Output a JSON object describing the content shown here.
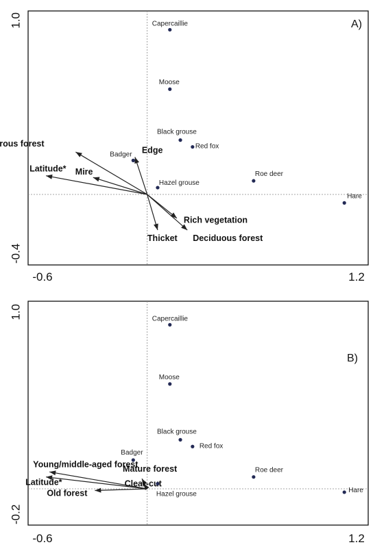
{
  "chart_data": [
    {
      "type": "scatter",
      "panel_label": "A)",
      "xlim": [
        -0.6,
        1.2
      ],
      "ylim": [
        -0.4,
        1.0
      ],
      "x_tick_labels": [
        "-0.6",
        "1.2"
      ],
      "y_tick_labels": [
        "1.0",
        "-0.4"
      ],
      "points": [
        {
          "name": "Capercaillie",
          "x": 0.13,
          "y": 0.97
        },
        {
          "name": "Moose",
          "x": 0.13,
          "y": 0.62
        },
        {
          "name": "Black grouse",
          "x": 0.19,
          "y": 0.32
        },
        {
          "name": "Red fox",
          "x": 0.26,
          "y": 0.28
        },
        {
          "name": "Badger",
          "x": -0.08,
          "y": 0.2
        },
        {
          "name": "Hazel grouse",
          "x": 0.06,
          "y": 0.04
        },
        {
          "name": "Roe deer",
          "x": 0.61,
          "y": 0.08
        },
        {
          "name": "Hare",
          "x": 1.13,
          "y": -0.05
        }
      ],
      "vectors": [
        {
          "name": "Coniferous forest",
          "x": -0.41,
          "y": 0.25
        },
        {
          "name": "Edge",
          "x": -0.07,
          "y": 0.22
        },
        {
          "name": "Latitude*",
          "x": -0.58,
          "y": 0.11
        },
        {
          "name": "Mire",
          "x": -0.31,
          "y": 0.1
        },
        {
          "name": "Rich vegetation",
          "x": 0.17,
          "y": -0.14
        },
        {
          "name": "Thicket",
          "x": 0.06,
          "y": -0.21
        },
        {
          "name": "Deciduous forest",
          "x": 0.23,
          "y": -0.21
        }
      ]
    },
    {
      "type": "scatter",
      "panel_label": "B)",
      "xlim": [
        -0.6,
        1.2
      ],
      "ylim": [
        -0.2,
        1.0
      ],
      "x_tick_labels": [
        "-0.6",
        "1.2"
      ],
      "y_tick_labels": [
        "1.0",
        "-0.2"
      ],
      "points": [
        {
          "name": "Capercaillie",
          "x": 0.13,
          "y": 0.97
        },
        {
          "name": "Moose",
          "x": 0.13,
          "y": 0.62
        },
        {
          "name": "Black grouse",
          "x": 0.19,
          "y": 0.29
        },
        {
          "name": "Red fox",
          "x": 0.26,
          "y": 0.25
        },
        {
          "name": "Badger",
          "x": -0.08,
          "y": 0.17
        },
        {
          "name": "Hazel grouse",
          "x": 0.06,
          "y": 0.03
        },
        {
          "name": "Roe deer",
          "x": 0.61,
          "y": 0.07
        },
        {
          "name": "Hare",
          "x": 1.13,
          "y": -0.02
        }
      ],
      "vectors": [
        {
          "name": "Young/middle-aged forest",
          "x": -0.56,
          "y": 0.1
        },
        {
          "name": "Mature forest",
          "x": -0.03,
          "y": 0.06
        },
        {
          "name": "Clear-cut",
          "x": -0.02,
          "y": 0.03
        },
        {
          "name": "Latitude*",
          "x": -0.58,
          "y": 0.07
        },
        {
          "name": "Old forest",
          "x": -0.3,
          "y": -0.01
        }
      ]
    }
  ]
}
